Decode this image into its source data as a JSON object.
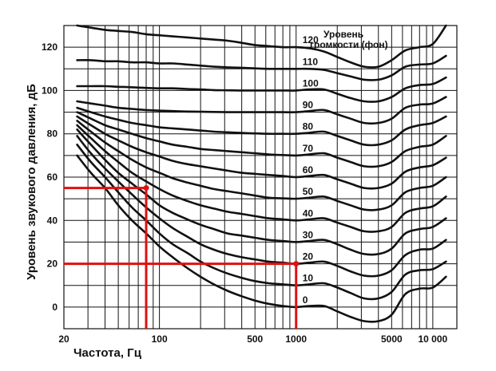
{
  "chart_data": {
    "type": "line",
    "title": "",
    "xlabel": "Частота, Гц",
    "ylabel": "Уровень звукового давления, дБ",
    "legend_title_line1": "Уровень",
    "legend_title_line2": "громкости (фон)",
    "x_scale": "log",
    "xlim": [
      20,
      15000
    ],
    "ylim": [
      -10,
      130
    ],
    "grid": true,
    "x_tick_labels": [
      {
        "value": 20,
        "text": "20"
      },
      {
        "value": 100,
        "text": "100"
      },
      {
        "value": 500,
        "text": "500"
      },
      {
        "value": 1000,
        "text": "1000"
      },
      {
        "value": 5000,
        "text": "5000"
      },
      {
        "value": 10000,
        "text": "10 000"
      }
    ],
    "y_ticks": [
      0,
      20,
      40,
      60,
      80,
      100,
      120
    ],
    "x": [
      25,
      31.5,
      40,
      50,
      63,
      80,
      100,
      125,
      160,
      200,
      250,
      315,
      400,
      500,
      630,
      800,
      1000,
      1250,
      1600,
      2000,
      2500,
      3150,
      4000,
      5000,
      6300,
      8000,
      10000,
      12500
    ],
    "series": [
      {
        "name": "0",
        "values": [
          70,
          62,
          55,
          47,
          40,
          34,
          28,
          23,
          18,
          14,
          10.5,
          7.5,
          5,
          3,
          1.5,
          0.5,
          0,
          0.5,
          0.5,
          -2,
          -4.5,
          -6.5,
          -6.5,
          -3.5,
          6,
          8.5,
          9,
          14
        ]
      },
      {
        "name": "10",
        "values": [
          75,
          67,
          60,
          53,
          46,
          40,
          34,
          29,
          25,
          21,
          18,
          15.5,
          13.5,
          12,
          11,
          10.5,
          10,
          10.5,
          11,
          9,
          6.5,
          4,
          4,
          7,
          15,
          17,
          17.5,
          21
        ]
      },
      {
        "name": "20",
        "values": [
          79,
          71,
          64,
          58,
          52,
          46,
          41,
          36.5,
          32.5,
          29,
          26.5,
          24.5,
          23,
          22,
          21,
          20.5,
          20,
          20.5,
          21,
          19,
          16.5,
          14.5,
          14.5,
          17,
          24,
          26.5,
          27,
          31
        ]
      },
      {
        "name": "30",
        "values": [
          82,
          75,
          68,
          62,
          57,
          52,
          47,
          43.5,
          40.5,
          38,
          36,
          34,
          33,
          32,
          31,
          30.5,
          30,
          30.5,
          31,
          29,
          26.5,
          24.5,
          24.5,
          27,
          34,
          36,
          37,
          41
        ]
      },
      {
        "name": "40",
        "values": [
          84,
          78,
          72,
          67,
          62,
          58,
          54.5,
          51.5,
          49,
          47,
          45.5,
          44,
          43,
          42,
          41,
          40.5,
          40,
          40.5,
          41,
          39,
          37,
          35,
          35,
          37,
          43.5,
          45.5,
          46.5,
          51
        ]
      },
      {
        "name": "50",
        "values": [
          86,
          81,
          76,
          72,
          68,
          64.5,
          62,
          59.5,
          57.5,
          56,
          54.5,
          53.5,
          52.5,
          51.5,
          50.5,
          50.2,
          50,
          50.5,
          51,
          49,
          47,
          45,
          45,
          47,
          53,
          55,
          56,
          60
        ]
      },
      {
        "name": "60",
        "values": [
          88,
          84,
          80,
          77,
          74,
          71.5,
          69.5,
          67.5,
          66,
          65,
          64,
          63,
          62,
          61.5,
          61,
          60.5,
          60,
          60.5,
          61,
          59,
          57,
          55,
          55,
          57,
          62.5,
          64.5,
          65.5,
          69
        ]
      },
      {
        "name": "70",
        "values": [
          90,
          87,
          84,
          82,
          80,
          78,
          76.5,
          75,
          74,
          73,
          72.5,
          72,
          71.5,
          71,
          70.5,
          70.2,
          70,
          70.5,
          71,
          69,
          67,
          65,
          65,
          67,
          72,
          74,
          75,
          79
        ]
      },
      {
        "name": "80",
        "values": [
          92,
          90,
          88,
          86.5,
          85,
          84,
          83,
          82.5,
          82,
          81.5,
          81,
          80.7,
          80.4,
          80.2,
          80,
          80,
          80,
          80.5,
          81,
          79,
          77,
          75,
          75,
          77,
          82,
          84,
          85,
          88
        ]
      },
      {
        "name": "90",
        "values": [
          95,
          94,
          93,
          92,
          91.5,
          91,
          90.7,
          90.5,
          90.3,
          90.2,
          90.1,
          90,
          90,
          90,
          90,
          90,
          90,
          90.5,
          91,
          89,
          87,
          85,
          85,
          87,
          92,
          93.5,
          94,
          97
        ]
      },
      {
        "name": "100",
        "values": [
          102,
          102,
          102,
          101.7,
          101.5,
          101.2,
          101,
          101,
          100.7,
          100.5,
          100.2,
          100.1,
          100,
          100,
          100,
          100,
          100,
          100.5,
          100.5,
          98.5,
          96.5,
          95,
          95,
          97,
          101,
          102.5,
          103,
          106
        ]
      },
      {
        "name": "110",
        "values": [
          114,
          114,
          113.5,
          113.5,
          113,
          113,
          112.5,
          112.5,
          112,
          111.5,
          111,
          110.7,
          110.5,
          110.2,
          110,
          110,
          110,
          110,
          109.5,
          108,
          106.5,
          105,
          105,
          107,
          111,
          112,
          112.5,
          116
        ]
      },
      {
        "name": "120",
        "values": [
          130,
          129,
          128,
          127.5,
          127,
          126,
          125.5,
          125,
          124.5,
          124,
          123.5,
          123,
          122,
          121,
          120.5,
          120,
          120,
          119.5,
          118,
          115.5,
          113,
          111,
          111,
          114,
          118.5,
          120,
          121.5,
          130
        ]
      }
    ],
    "annotations": [
      {
        "type": "guide",
        "x": 80,
        "y": 55,
        "color": "#dd1111"
      },
      {
        "type": "guide",
        "x": 1000,
        "y": 20,
        "color": "#dd1111"
      }
    ],
    "colors": {
      "curve": "#111111",
      "grid": "#111111",
      "accent": "#dd1111"
    }
  }
}
